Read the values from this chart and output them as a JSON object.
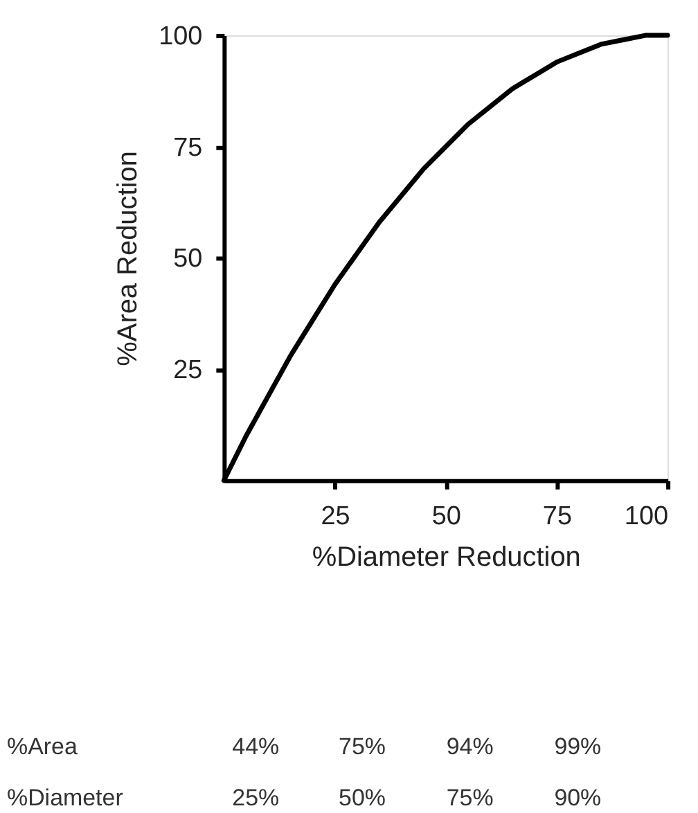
{
  "chart_data": {
    "type": "line",
    "x": [
      0,
      5,
      10,
      15,
      20,
      25,
      30,
      35,
      40,
      45,
      50,
      55,
      60,
      65,
      70,
      75,
      80,
      85,
      90,
      95,
      100
    ],
    "values": [
      0,
      10,
      19,
      28,
      36,
      44,
      51,
      58,
      64,
      70,
      75,
      80,
      84,
      88,
      91,
      94,
      96,
      98,
      99,
      100,
      100
    ],
    "color": "#000000",
    "xlabel": "%Diameter Reduction",
    "ylabel": "%Area Reduction",
    "xlim": [
      0,
      100
    ],
    "ylim": [
      0,
      100
    ],
    "xticks": [
      25,
      50,
      75,
      100
    ],
    "yticks": [
      25,
      50,
      75,
      100
    ],
    "grid": false,
    "annotations": [
      "%Area",
      "44%",
      "75%",
      "94%",
      "99%",
      "%Diameter",
      "25%",
      "50%",
      "75%",
      "90%"
    ]
  }
}
